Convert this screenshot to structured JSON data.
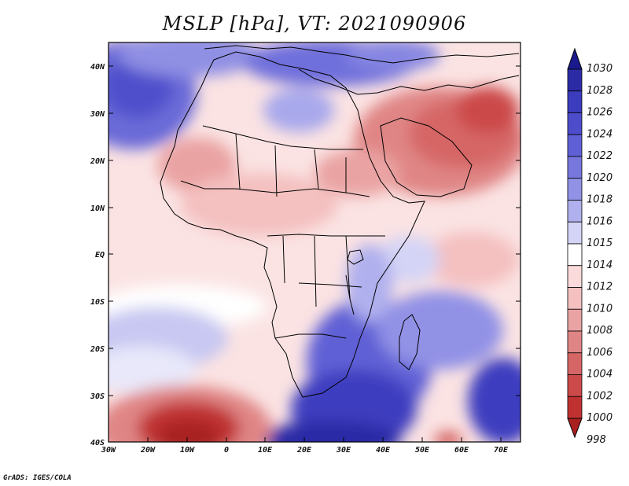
{
  "title": "MSLP [hPa], VT: 2021090906",
  "footer": "GrADS: IGES/COLA",
  "axes": {
    "lon_ticks": [
      "30W",
      "20W",
      "10W",
      "0",
      "10E",
      "20E",
      "30E",
      "40E",
      "50E",
      "60E",
      "70E"
    ],
    "lat_ticks": [
      "40N",
      "30N",
      "20N",
      "10N",
      "EQ",
      "10S",
      "20S",
      "30S",
      "40S"
    ]
  },
  "colorbar": {
    "levels": [
      "1030",
      "1028",
      "1026",
      "1024",
      "1022",
      "1020",
      "1018",
      "1016",
      "1015",
      "1014",
      "1012",
      "1010",
      "1008",
      "1006",
      "1004",
      "1002",
      "1000",
      "998"
    ],
    "colors": [
      "#1a1a8c",
      "#2b2ba6",
      "#3c3cbf",
      "#4d4dcc",
      "#6060d6",
      "#7777de",
      "#9191e6",
      "#b0b0ee",
      "#d4d4f6",
      "#ffffff",
      "#fadada",
      "#f4c0c0",
      "#eaa3a3",
      "#e08585",
      "#d66666",
      "#cc4a4a",
      "#c03232",
      "#a82020"
    ]
  }
}
